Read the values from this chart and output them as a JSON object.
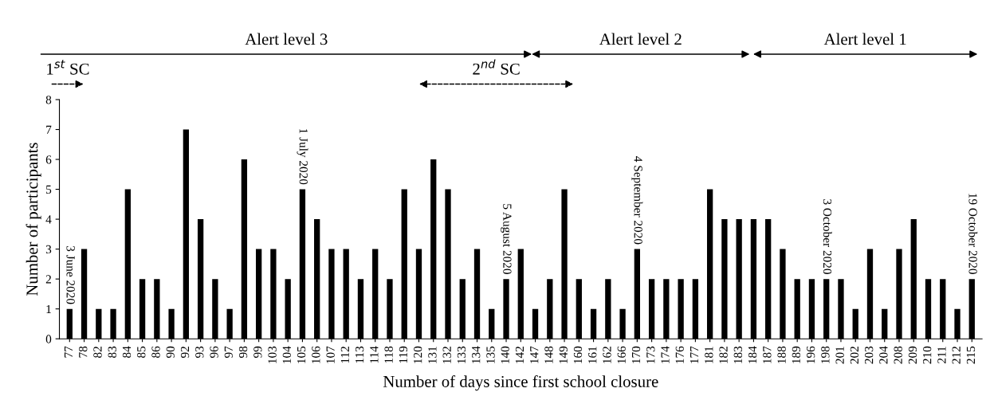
{
  "chart_data": {
    "type": "bar",
    "xlabel": "Number of days since first school closure",
    "ylabel": "Number of participants",
    "categories": [
      "77",
      "78",
      "82",
      "83",
      "84",
      "85",
      "86",
      "90",
      "92",
      "93",
      "96",
      "97",
      "98",
      "99",
      "103",
      "104",
      "105",
      "106",
      "107",
      "112",
      "113",
      "114",
      "118",
      "119",
      "120",
      "131",
      "132",
      "133",
      "134",
      "135",
      "140",
      "142",
      "147",
      "148",
      "149",
      "160",
      "161",
      "162",
      "166",
      "170",
      "173",
      "174",
      "176",
      "177",
      "181",
      "182",
      "183",
      "184",
      "187",
      "188",
      "189",
      "196",
      "198",
      "201",
      "202",
      "203",
      "204",
      "208",
      "209",
      "210",
      "211",
      "212",
      "215"
    ],
    "values": [
      1,
      3,
      1,
      1,
      5,
      2,
      2,
      1,
      7,
      4,
      2,
      1,
      6,
      3,
      3,
      2,
      5,
      4,
      3,
      3,
      2,
      3,
      2,
      5,
      3,
      6,
      5,
      2,
      3,
      1,
      2,
      3,
      1,
      2,
      5,
      2,
      1,
      2,
      1,
      3,
      2,
      2,
      2,
      2,
      5,
      4,
      4,
      4,
      4,
      3,
      2,
      2,
      2,
      2,
      1,
      3,
      1,
      3,
      4,
      2,
      2,
      1,
      2
    ],
    "color": "#000000",
    "ylim": [
      0,
      8
    ],
    "yticks": [
      0,
      1,
      2,
      3,
      4,
      5,
      6,
      7,
      8
    ],
    "grid": false,
    "annotations": [
      {
        "text": "3 June 2020",
        "x": "77",
        "y": 1
      },
      {
        "text": "1 July 2020",
        "x": "105",
        "y": 5
      },
      {
        "text": "5 August 2020",
        "x": "140",
        "y": 2
      },
      {
        "text": "4 September 2020",
        "x": "170",
        "y": 3
      },
      {
        "text": "3 October 2020",
        "x": "198",
        "y": 2
      },
      {
        "text": "19 October 2020",
        "x": "215",
        "y": 2
      },
      "Alert level 3",
      "Alert level 2",
      "Alert level 1",
      "1$^{st}$ SC",
      "2$^{nd}$ SC"
    ]
  }
}
